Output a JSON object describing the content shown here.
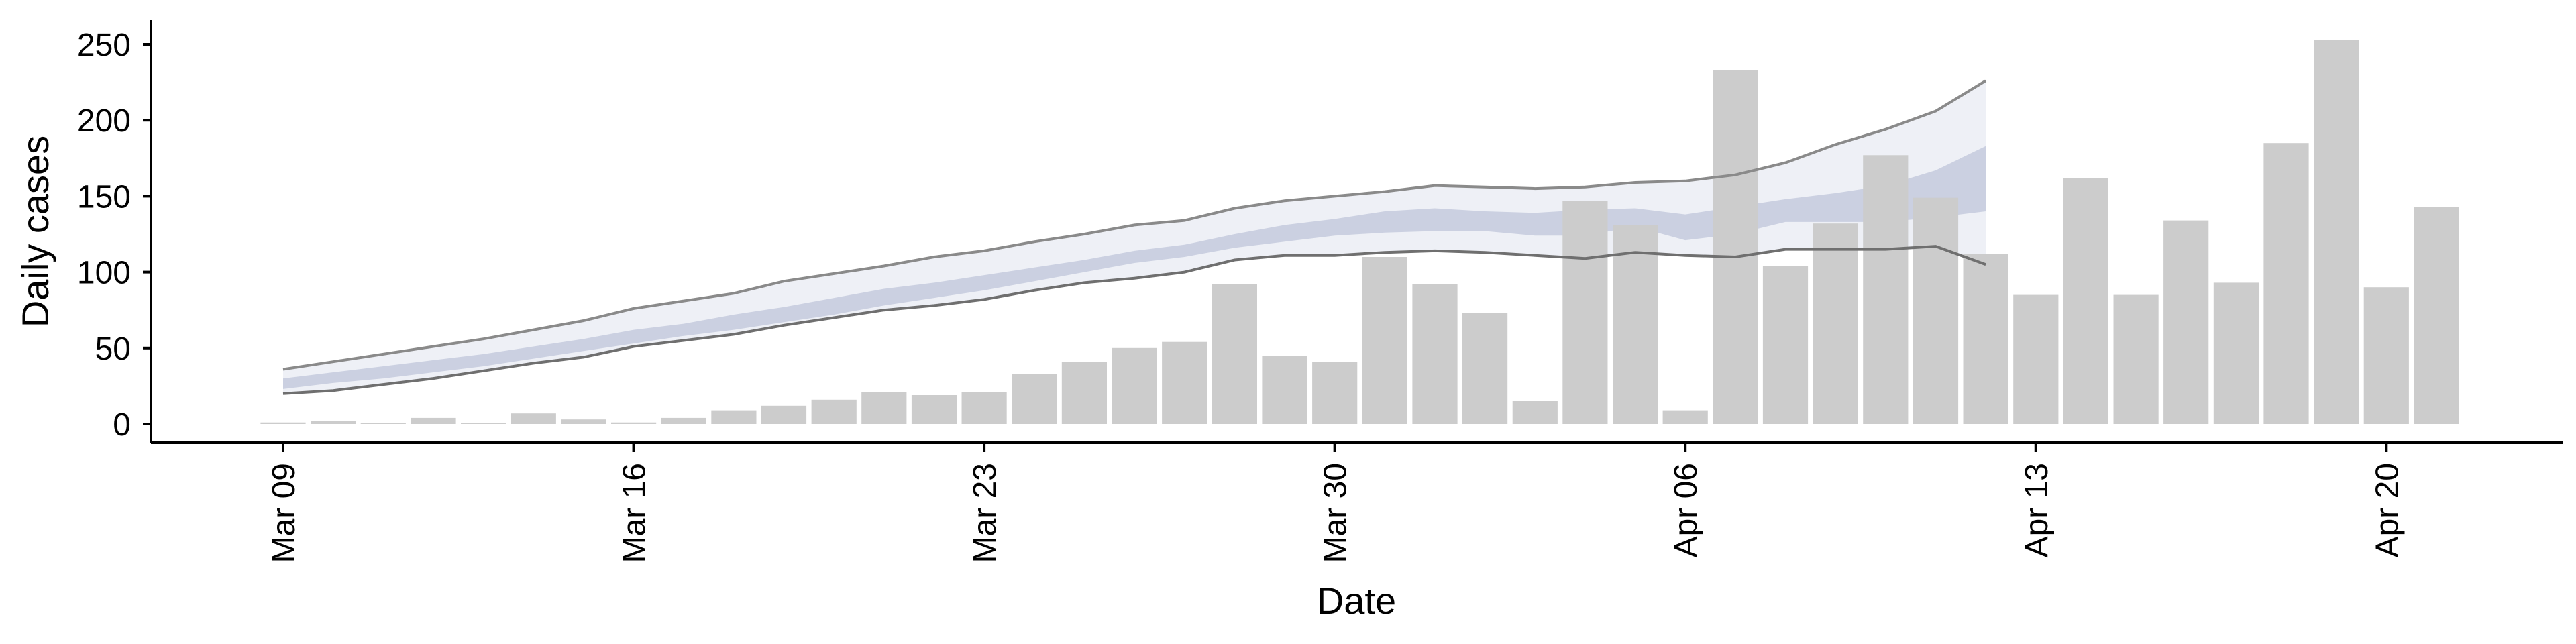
{
  "chart_data": {
    "type": "bar",
    "xlabel": "Date",
    "ylabel": "Daily cases",
    "ylim": [
      -12,
      265
    ],
    "y_ticks": [
      0,
      50,
      100,
      150,
      200,
      250
    ],
    "x_ticks": [
      "Mar 09",
      "Mar 16",
      "Mar 23",
      "Mar 30",
      "Apr 06",
      "Apr 13",
      "Apr 20"
    ],
    "grid": false,
    "legend": "none",
    "dates": [
      "Mar 09",
      "Mar 10",
      "Mar 11",
      "Mar 12",
      "Mar 13",
      "Mar 14",
      "Mar 15",
      "Mar 16",
      "Mar 17",
      "Mar 18",
      "Mar 19",
      "Mar 20",
      "Mar 21",
      "Mar 22",
      "Mar 23",
      "Mar 24",
      "Mar 25",
      "Mar 26",
      "Mar 27",
      "Mar 28",
      "Mar 29",
      "Mar 30",
      "Mar 31",
      "Apr 01",
      "Apr 02",
      "Apr 03",
      "Apr 04",
      "Apr 05",
      "Apr 06",
      "Apr 07",
      "Apr 08",
      "Apr 09",
      "Apr 10",
      "Apr 11",
      "Apr 12",
      "Apr 13",
      "Apr 14",
      "Apr 15",
      "Apr 16",
      "Apr 17",
      "Apr 18",
      "Apr 19",
      "Apr 20",
      "Apr 21"
    ],
    "series": [
      {
        "type": "bar",
        "color": "#cccccc",
        "values": [
          1,
          2,
          0,
          4,
          0,
          7,
          3,
          1,
          4,
          9,
          12,
          16,
          21,
          19,
          21,
          33,
          41,
          50,
          54,
          92,
          45,
          41,
          110,
          92,
          73,
          15,
          147,
          131,
          9,
          233,
          104,
          132,
          177,
          149,
          112,
          85,
          162,
          85,
          134,
          93,
          185,
          253,
          90,
          143
        ]
      },
      {
        "type": "band",
        "color": "#eceef5",
        "lower": [
          20,
          22,
          26,
          30,
          35,
          40,
          44,
          51,
          55,
          59,
          65,
          70,
          75,
          78,
          82,
          88,
          93,
          96,
          100,
          108,
          111,
          111,
          113,
          114,
          113,
          111,
          109,
          113,
          111,
          110,
          115,
          115,
          115,
          117,
          105
        ],
        "upper": [
          36,
          41,
          46,
          51,
          56,
          62,
          68,
          76,
          81,
          86,
          94,
          99,
          104,
          110,
          114,
          120,
          125,
          131,
          134,
          142,
          147,
          150,
          153,
          157,
          156,
          155,
          156,
          159,
          160,
          164,
          172,
          184,
          194,
          206,
          226
        ]
      },
      {
        "type": "band",
        "color": "#c4cadd",
        "lower": [
          23,
          27,
          30,
          34,
          38,
          43,
          48,
          53,
          58,
          62,
          67,
          72,
          78,
          83,
          88,
          94,
          100,
          106,
          110,
          116,
          120,
          124,
          126,
          127,
          127,
          124,
          124,
          130,
          121,
          125,
          133,
          133,
          133,
          136,
          140
        ],
        "upper": [
          30,
          34,
          38,
          42,
          46,
          51,
          56,
          62,
          66,
          72,
          77,
          83,
          89,
          93,
          98,
          103,
          108,
          114,
          118,
          125,
          131,
          135,
          140,
          142,
          140,
          139,
          141,
          142,
          138,
          143,
          148,
          152,
          157,
          167,
          183
        ]
      }
    ]
  }
}
